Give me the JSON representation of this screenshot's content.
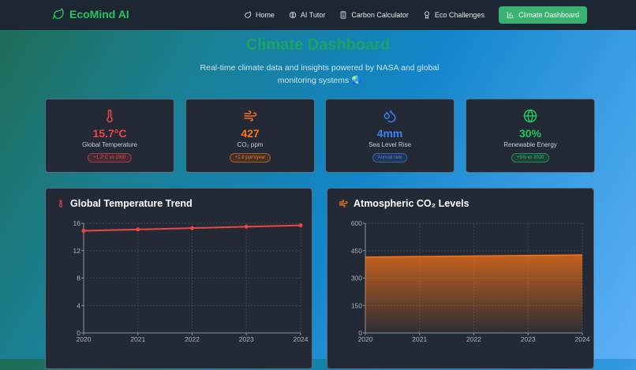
{
  "nav": {
    "brand": "EcoMind AI",
    "links": [
      {
        "label": "Home",
        "icon": "leaf-icon"
      },
      {
        "label": "AI Tutor",
        "icon": "brain-icon"
      },
      {
        "label": "Carbon Calculator",
        "icon": "calculator-icon"
      },
      {
        "label": "Eco Challenges",
        "icon": "trophy-icon"
      },
      {
        "label": "Climate Dashboard",
        "icon": "bar-chart-icon",
        "active": true
      }
    ]
  },
  "header": {
    "title": "Climate Dashboard",
    "subtitle": "Real-time climate data and insights powered by NASA and global monitoring systems 🌏"
  },
  "stats": [
    {
      "value": "15.7°C",
      "label": "Global Temperature",
      "badge": "+1.2°C vs 1900",
      "color": "#ef4444",
      "icon": "thermometer-icon"
    },
    {
      "value": "427",
      "label": "CO₂ ppm",
      "badge": "+2.8 ppm/year",
      "color": "#f97316",
      "icon": "wind-icon"
    },
    {
      "value": "4mm",
      "label": "Sea Level Rise",
      "badge": "Annual rate",
      "color": "#3b82f6",
      "icon": "droplets-icon"
    },
    {
      "value": "30%",
      "label": "Renewable Energy",
      "badge": "+5% vs 2020",
      "color": "#22c55e",
      "icon": "globe-icon"
    }
  ],
  "chart_data": [
    {
      "type": "line",
      "title": "Global Temperature Trend",
      "categories": [
        "2020",
        "2021",
        "2022",
        "2023",
        "2024"
      ],
      "values": [
        14.9,
        15.1,
        15.3,
        15.5,
        15.7
      ],
      "ylim": [
        0,
        16
      ],
      "yticks": [
        "0",
        "4",
        "8",
        "12",
        "16"
      ],
      "color": "#ef4444",
      "grid": true
    },
    {
      "type": "area",
      "title": "Atmospheric CO₂ Levels",
      "categories": [
        "2020",
        "2021",
        "2022",
        "2023",
        "2024"
      ],
      "values": [
        415,
        418,
        421,
        424,
        427
      ],
      "ylim": [
        0,
        600
      ],
      "yticks": [
        "0",
        "150",
        "300",
        "450",
        "600"
      ],
      "color": "#f97316",
      "grid": true
    }
  ]
}
